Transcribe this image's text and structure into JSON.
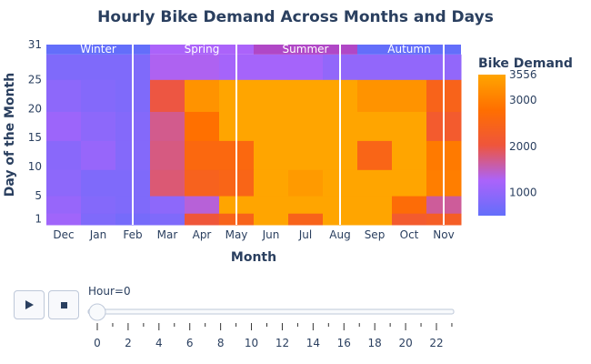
{
  "colors": {
    "title": "#2a3f5f",
    "seasons": {
      "Winter": "#636efa",
      "Spring": "#ab63fa",
      "Summer": "#b047c6",
      "Autumn": "#636efa"
    }
  },
  "chart_data": {
    "type": "heatmap",
    "title": "Hourly Bike Demand Across Months and Days",
    "xlabel": "Month",
    "ylabel": "Day of the Month",
    "x_categories": [
      "Dec",
      "Jan",
      "Feb",
      "Mar",
      "Apr",
      "May",
      "Jun",
      "Jul",
      "Aug",
      "Sep",
      "Oct",
      "Nov"
    ],
    "y_ticks": [
      1,
      5,
      10,
      15,
      20,
      25,
      31
    ],
    "day_bins": [
      1,
      3,
      7,
      12,
      17,
      22,
      28
    ],
    "values": [
      [
        1150,
        800,
        700,
        800,
        2050,
        2450,
        3556,
        2450,
        3556,
        3556,
        2200,
        2300
      ],
      [
        1050,
        850,
        800,
        950,
        1400,
        3556,
        3556,
        3556,
        3556,
        3556,
        2700,
        1650
      ],
      [
        950,
        800,
        800,
        1800,
        2400,
        2500,
        3556,
        3400,
        3556,
        3556,
        3556,
        3000
      ],
      [
        900,
        1050,
        850,
        1750,
        2600,
        2600,
        3556,
        3556,
        3556,
        2500,
        3556,
        2950
      ],
      [
        1100,
        950,
        850,
        1700,
        2800,
        3556,
        3556,
        3556,
        3556,
        3556,
        3556,
        2200
      ],
      [
        950,
        850,
        800,
        2000,
        3300,
        3556,
        3556,
        3556,
        3556,
        3300,
        3300,
        2450
      ],
      [
        800,
        800,
        800,
        1300,
        1300,
        1200,
        1200,
        1200,
        1000,
        1000,
        1000,
        1000
      ]
    ],
    "season_bands": [
      {
        "name": "Winter",
        "from": "Dec",
        "to": "Feb"
      },
      {
        "name": "Spring",
        "from": "Mar",
        "to": "May"
      },
      {
        "name": "Summer",
        "from": "Jun",
        "to": "Aug"
      },
      {
        "name": "Autumn",
        "from": "Sep",
        "to": "Nov"
      }
    ],
    "colorbar": {
      "title": "Bike Demand",
      "ticks": [
        1000,
        2000,
        3000,
        3556
      ],
      "range": [
        500,
        3556
      ],
      "colorscale": [
        "#636efa",
        "#ab63fa",
        "#ef553b",
        "#ff6f00",
        "#ffa500"
      ]
    },
    "slider": {
      "label_prefix": "Hour=",
      "current": 0,
      "ticks": [
        0,
        2,
        4,
        6,
        8,
        10,
        12,
        14,
        16,
        18,
        20,
        22
      ]
    }
  }
}
